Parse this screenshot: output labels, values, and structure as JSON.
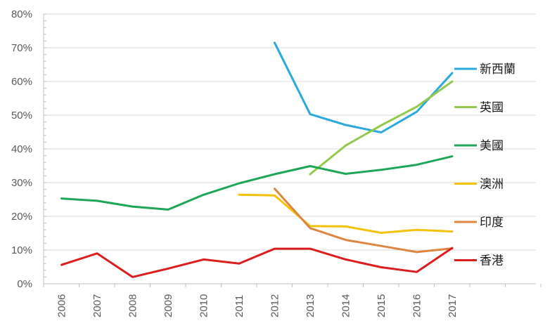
{
  "chart_data": {
    "type": "line",
    "title": "",
    "xlabel": "",
    "ylabel": "",
    "categories": [
      "2006",
      "2007",
      "2008",
      "2009",
      "2010",
      "2011",
      "2012",
      "2013",
      "2014",
      "2015",
      "2016",
      "2017"
    ],
    "ylim": [
      0,
      80
    ],
    "y_ticks": [
      "0%",
      "10%",
      "20%",
      "30%",
      "40%",
      "50%",
      "60%",
      "70%",
      "80%"
    ],
    "grid": "horizontal",
    "legend_position": "right",
    "series": [
      {
        "name": "新西蘭",
        "color": "#2aa9dc",
        "values": [
          null,
          null,
          null,
          null,
          null,
          null,
          71.5,
          50.3,
          47.1,
          44.9,
          51.0,
          62.5
        ]
      },
      {
        "name": "英國",
        "color": "#92c94c",
        "values": [
          null,
          null,
          null,
          null,
          null,
          null,
          null,
          32.5,
          41.0,
          47.0,
          52.5,
          60.0
        ]
      },
      {
        "name": "美國",
        "color": "#1da655",
        "values": [
          25.3,
          24.6,
          22.9,
          22.0,
          26.4,
          29.8,
          32.5,
          34.9,
          32.6,
          33.8,
          35.3,
          37.8
        ]
      },
      {
        "name": "澳洲",
        "color": "#f5c10a",
        "values": [
          null,
          null,
          null,
          null,
          null,
          26.4,
          26.2,
          17.1,
          17.0,
          15.1,
          16.0,
          15.5
        ]
      },
      {
        "name": "印度",
        "color": "#de8641",
        "values": [
          null,
          null,
          null,
          null,
          null,
          null,
          28.2,
          16.5,
          13.0,
          11.2,
          9.4,
          10.5
        ]
      },
      {
        "name": "香港",
        "color": "#dc1d1d",
        "values": [
          5.6,
          9.0,
          2.0,
          4.5,
          7.2,
          6.0,
          10.4,
          10.4,
          7.2,
          4.9,
          3.5,
          10.6
        ]
      }
    ]
  }
}
